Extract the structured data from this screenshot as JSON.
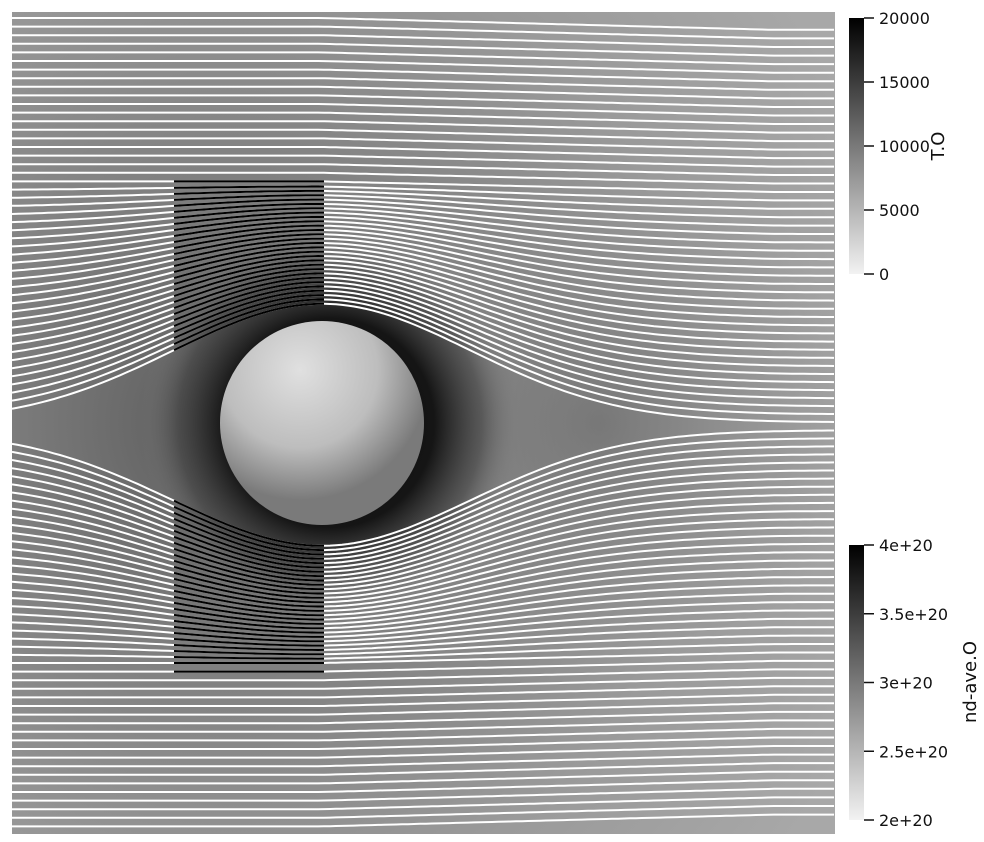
{
  "colorbars": [
    {
      "title": "T.O",
      "ticks": [
        "20000",
        "15000",
        "10000",
        "5000",
        "0"
      ]
    },
    {
      "title": "nd-ave.O",
      "ticks": [
        "4e+20",
        "3.5e+20",
        "3e+20",
        "2.5e+20",
        "2e+20"
      ]
    }
  ],
  "colors": {
    "background": "#ffffff",
    "field_base": "#8c8c8c",
    "shock_dark": "#0a0a0a",
    "streamline": "#ffffff",
    "sphere": "#bdbdbd"
  }
}
